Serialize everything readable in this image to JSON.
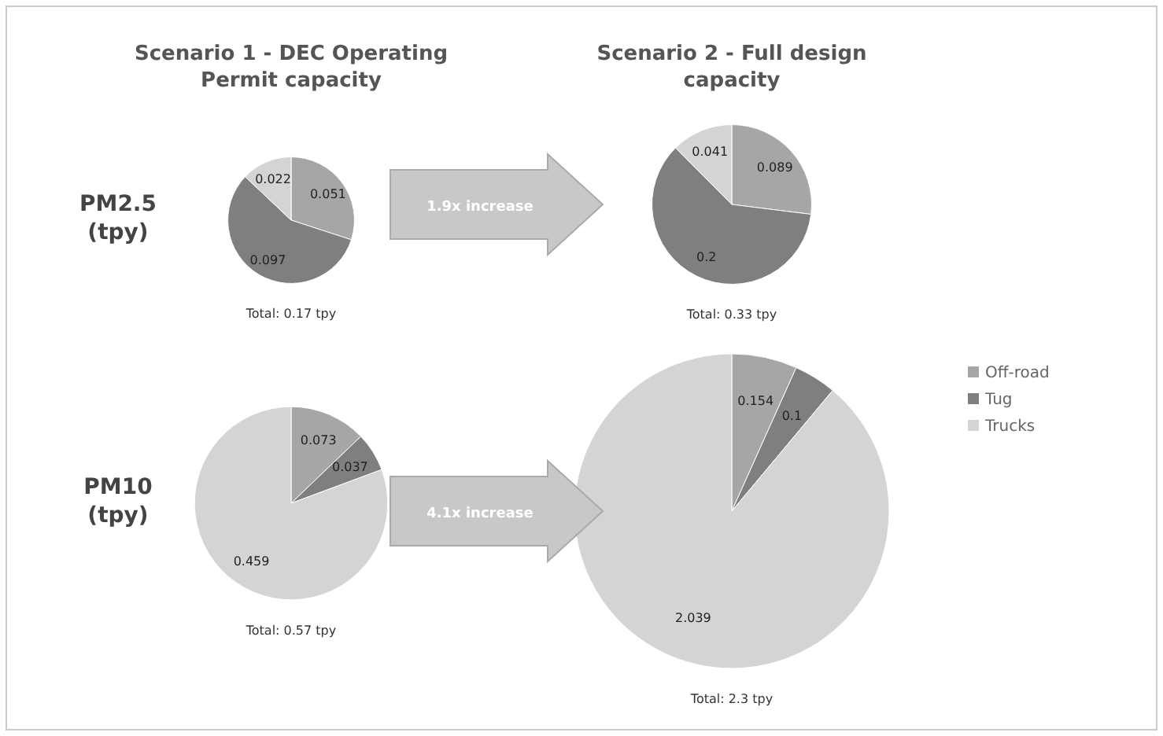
{
  "chart_data": [
    {
      "type": "pie",
      "title": "Scenario 1 - DEC Operating Permit capacity",
      "ylabel": "PM2.5 (tpy)",
      "categories": [
        null,
        null,
        null
      ],
      "values": [
        0.051,
        0.097,
        0.022
      ],
      "colors": [
        "#a6a6a6",
        "#7f7f7f",
        "#d4d4d4"
      ],
      "data_labels": true,
      "annotations": [
        "Total: 0.17 tpy"
      ]
    },
    {
      "type": "pie",
      "title": "Scenario 2 - Full design capacity",
      "categories": [
        null,
        null,
        null
      ],
      "values": [
        0.089,
        0.2,
        0.041
      ],
      "colors": [
        "#a6a6a6",
        "#7f7f7f",
        "#d4d4d4"
      ],
      "data_labels": true,
      "annotations": [
        "Total: 0.33 tpy",
        "1.9x increase"
      ]
    },
    {
      "type": "pie",
      "ylabel": "PM10 (tpy)",
      "categories": [
        null,
        null,
        null
      ],
      "values": [
        0.073,
        0.037,
        0.459
      ],
      "colors": [
        "#a6a6a6",
        "#7f7f7f",
        "#d4d4d4"
      ],
      "data_labels": true,
      "annotations": [
        "Total: 0.57 tpy"
      ]
    },
    {
      "type": "pie",
      "categories": [
        "Off-road",
        "Tug",
        "Trucks"
      ],
      "values": [
        0.154,
        0.1,
        2.039
      ],
      "colors": [
        "#a6a6a6",
        "#7f7f7f",
        "#d4d4d4"
      ],
      "data_labels": true,
      "legend": "right",
      "annotations": [
        "Total: 2.3 tpy",
        "4.1x increase"
      ]
    }
  ]
}
